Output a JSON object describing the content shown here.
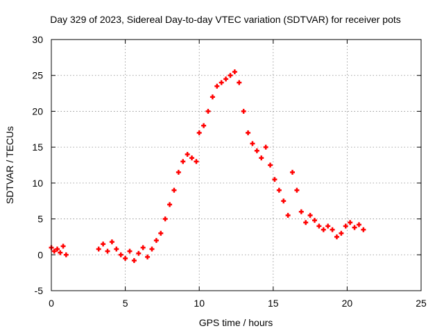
{
  "chart_data": {
    "type": "scatter",
    "title": "Day 329 of 2023, Sidereal Day-to-day VTEC variation (SDTVAR) for receiver pots",
    "xlabel": "GPS time / hours",
    "ylabel": "SDTVAR / TECUs",
    "xlim": [
      0,
      25
    ],
    "ylim": [
      -5,
      30
    ],
    "xticks": [
      0,
      5,
      10,
      15,
      20,
      25
    ],
    "xtick_labels": [
      "0",
      "5",
      "10",
      "15",
      "20",
      "25"
    ],
    "yticks": [
      -5,
      0,
      5,
      10,
      15,
      20,
      25,
      30
    ],
    "ytick_labels": [
      "-5",
      "0",
      "5",
      "10",
      "15",
      "20",
      "25",
      "30"
    ],
    "grid": true,
    "marker": "+",
    "series": [
      {
        "name": "SDTVAR",
        "color": "#ff0000",
        "x": [
          0.0,
          0.2,
          0.4,
          0.6,
          0.8,
          1.0,
          3.2,
          3.5,
          3.8,
          4.1,
          4.4,
          4.7,
          5.0,
          5.3,
          5.6,
          5.9,
          6.2,
          6.5,
          6.8,
          7.1,
          7.4,
          7.7,
          8.0,
          8.3,
          8.6,
          8.9,
          9.2,
          9.5,
          9.8,
          10.0,
          10.3,
          10.6,
          10.9,
          11.2,
          11.5,
          11.8,
          12.1,
          12.4,
          12.7,
          13.0,
          13.3,
          13.6,
          13.9,
          14.2,
          14.5,
          14.8,
          15.1,
          15.4,
          15.7,
          16.0,
          16.3,
          16.6,
          16.9,
          17.2,
          17.5,
          17.8,
          18.1,
          18.4,
          18.7,
          19.0,
          19.3,
          19.6,
          19.9,
          20.2,
          20.5,
          20.8,
          21.1
        ],
        "y": [
          1.0,
          0.5,
          0.8,
          0.3,
          1.2,
          0.0,
          0.8,
          1.5,
          0.5,
          1.8,
          0.8,
          0.0,
          -0.5,
          0.5,
          -0.8,
          0.2,
          1.0,
          -0.3,
          0.8,
          2.0,
          3.0,
          5.0,
          7.0,
          9.0,
          11.5,
          13.0,
          14.0,
          13.5,
          13.0,
          17.0,
          18.0,
          20.0,
          22.0,
          23.5,
          24.0,
          24.5,
          25.0,
          25.5,
          24.0,
          20.0,
          17.0,
          15.5,
          14.5,
          13.5,
          15.0,
          12.5,
          10.5,
          9.0,
          7.5,
          5.5,
          11.5,
          9.0,
          6.0,
          4.5,
          5.5,
          4.8,
          4.0,
          3.5,
          4.0,
          3.5,
          2.5,
          3.0,
          4.0,
          4.5,
          3.8,
          4.2,
          3.5
        ]
      }
    ]
  }
}
